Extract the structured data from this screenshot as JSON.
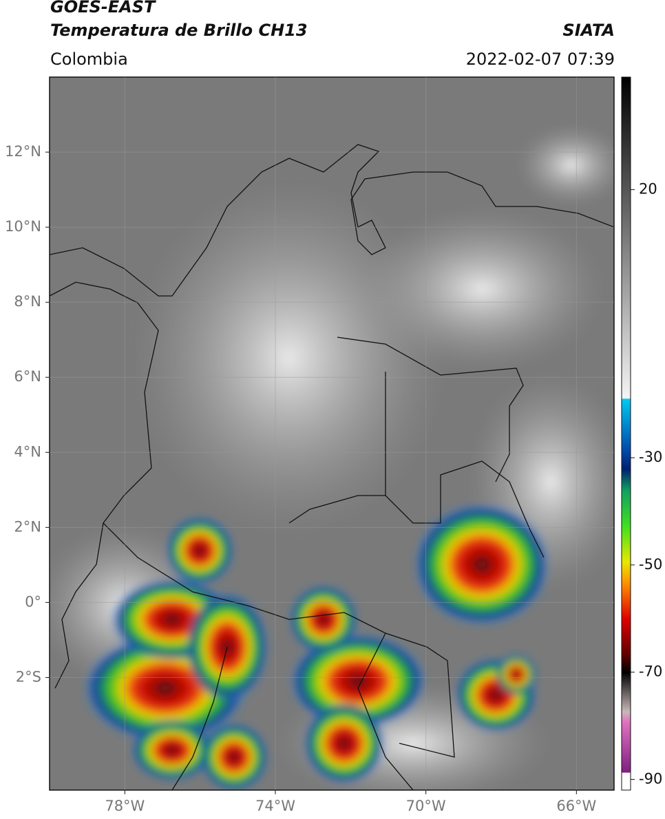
{
  "header": {
    "satellite": "GOES-EAST",
    "product": "Temperatura de Brillo CH13",
    "agency": "SIATA",
    "region": "Colombia",
    "datetime": "2022-02-07 07:39"
  },
  "map": {
    "lat_lim": [
      -5,
      14
    ],
    "lon_lim": [
      -80,
      -65
    ],
    "lat_ticks": [
      {
        "value": 12,
        "label": "12°N"
      },
      {
        "value": 10,
        "label": "10°N"
      },
      {
        "value": 8,
        "label": "8°N"
      },
      {
        "value": 6,
        "label": "6°N"
      },
      {
        "value": 4,
        "label": "4°N"
      },
      {
        "value": 2,
        "label": "2°N"
      },
      {
        "value": 0,
        "label": "0°"
      },
      {
        "value": -2,
        "label": "2°S"
      }
    ],
    "lon_ticks": [
      {
        "value": -78,
        "label": "78°W"
      },
      {
        "value": -74,
        "label": "74°W"
      },
      {
        "value": -70,
        "label": "70°W"
      },
      {
        "value": -66,
        "label": "66°W"
      }
    ],
    "grid": true
  },
  "colorbar": {
    "lim": [
      -92,
      41
    ],
    "ticks": [
      20,
      -30,
      -50,
      -70,
      -90
    ]
  }
}
